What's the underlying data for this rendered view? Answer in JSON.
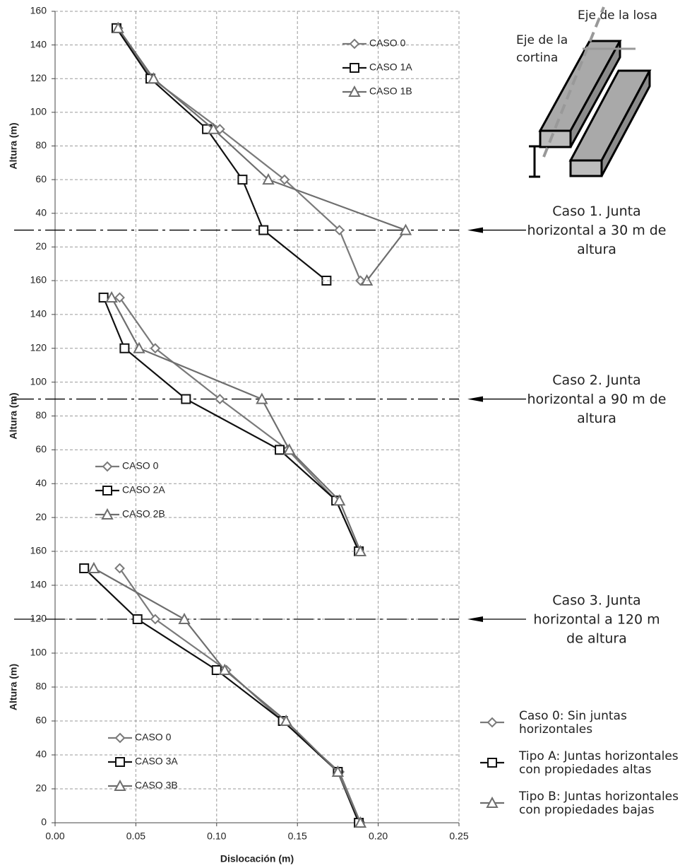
{
  "chart_data": [
    {
      "type": "line",
      "ylabel": "Altura (m)",
      "xlim": [
        0,
        0.25
      ],
      "ylim": [
        0,
        160
      ],
      "yticks": [
        20,
        40,
        60,
        80,
        100,
        120,
        140,
        160
      ],
      "grid": true,
      "legend": "upper right",
      "joint": 30,
      "annotation": [
        "Caso 1. Junta",
        "horizontal a 30 m de",
        "altura"
      ],
      "y": [
        150,
        120,
        90,
        60,
        30,
        0
      ],
      "series": [
        {
          "name": "CASO 0",
          "color": "#7a7a7a",
          "marker": "diamond",
          "values": [
            0.039,
            0.06,
            0.102,
            0.142,
            0.176,
            0.189
          ]
        },
        {
          "name": "CASO 1A",
          "color": "#111111",
          "marker": "square",
          "values": [
            0.038,
            0.059,
            0.094,
            0.116,
            0.129,
            0.168
          ]
        },
        {
          "name": "CASO 1B",
          "color": "#6e6e6e",
          "marker": "triangle",
          "values": [
            0.039,
            0.061,
            0.098,
            0.132,
            0.217,
            0.193
          ]
        }
      ]
    },
    {
      "type": "line",
      "ylabel": "Altura (m)",
      "xlim": [
        0,
        0.25
      ],
      "ylim": [
        0,
        160
      ],
      "yticks": [
        20,
        40,
        60,
        80,
        100,
        120,
        140,
        160
      ],
      "grid": true,
      "legend": "lower left",
      "joint": 90,
      "annotation": [
        "Caso 2. Junta",
        "horizontal a 90 m de",
        "altura"
      ],
      "y": [
        150,
        120,
        90,
        60,
        30,
        0
      ],
      "series": [
        {
          "name": "CASO 0",
          "color": "#7a7a7a",
          "marker": "diamond",
          "values": [
            0.04,
            0.062,
            0.102,
            0.144,
            0.174,
            0.188
          ]
        },
        {
          "name": "CASO 2A",
          "color": "#111111",
          "marker": "square",
          "values": [
            0.03,
            0.043,
            0.081,
            0.139,
            0.174,
            0.188
          ]
        },
        {
          "name": "CASO 2B",
          "color": "#6e6e6e",
          "marker": "triangle",
          "values": [
            0.035,
            0.052,
            0.128,
            0.145,
            0.176,
            0.189
          ]
        }
      ]
    },
    {
      "type": "line",
      "ylabel": "Altura (m)",
      "xlabel": "Dislocación  (m)",
      "xlim": [
        0,
        0.25
      ],
      "ylim": [
        0,
        160
      ],
      "yticks": [
        0,
        20,
        40,
        60,
        80,
        100,
        120,
        140,
        160
      ],
      "xticks": [
        {
          "value": 0,
          "label": "0.00"
        },
        {
          "value": 0.05,
          "label": "0.05"
        },
        {
          "value": 0.1,
          "label": "0.10"
        },
        {
          "value": 0.15,
          "label": "0.15"
        },
        {
          "value": 0.2,
          "label": "0.20"
        },
        {
          "value": 0.25,
          "label": "0.25"
        }
      ],
      "grid": true,
      "legend": "lower left",
      "joint": 120,
      "annotation": [
        "Caso 3. Junta",
        "horizontal a 120 m",
        "de altura"
      ],
      "y": [
        150,
        120,
        90,
        60,
        30,
        0
      ],
      "series": [
        {
          "name": "CASO 0",
          "color": "#7a7a7a",
          "marker": "diamond",
          "values": [
            0.04,
            0.062,
            0.106,
            0.141,
            0.176,
            0.189
          ]
        },
        {
          "name": "CASO 3A",
          "color": "#111111",
          "marker": "square",
          "values": [
            0.018,
            0.051,
            0.1,
            0.141,
            0.175,
            0.188
          ]
        },
        {
          "name": "CASO 3B",
          "color": "#6e6e6e",
          "marker": "triangle",
          "values": [
            0.024,
            0.08,
            0.105,
            0.143,
            0.175,
            0.189
          ]
        }
      ]
    }
  ],
  "diagram": {
    "slab_axis": "Eje de la losa",
    "curtain_axis": [
      "Eje de la",
      "cortina"
    ]
  },
  "key": [
    {
      "marker": "diamond",
      "color": "#7a7a7a",
      "lines": [
        "Caso 0: Sin juntas",
        "horizontales"
      ]
    },
    {
      "marker": "square",
      "color": "#111111",
      "lines": [
        "Tipo A: Juntas horizontales",
        "con propiedades altas"
      ]
    },
    {
      "marker": "triangle",
      "color": "#6e6e6e",
      "lines": [
        "Tipo B: Juntas horizontales",
        "con propiedades bajas"
      ]
    }
  ]
}
